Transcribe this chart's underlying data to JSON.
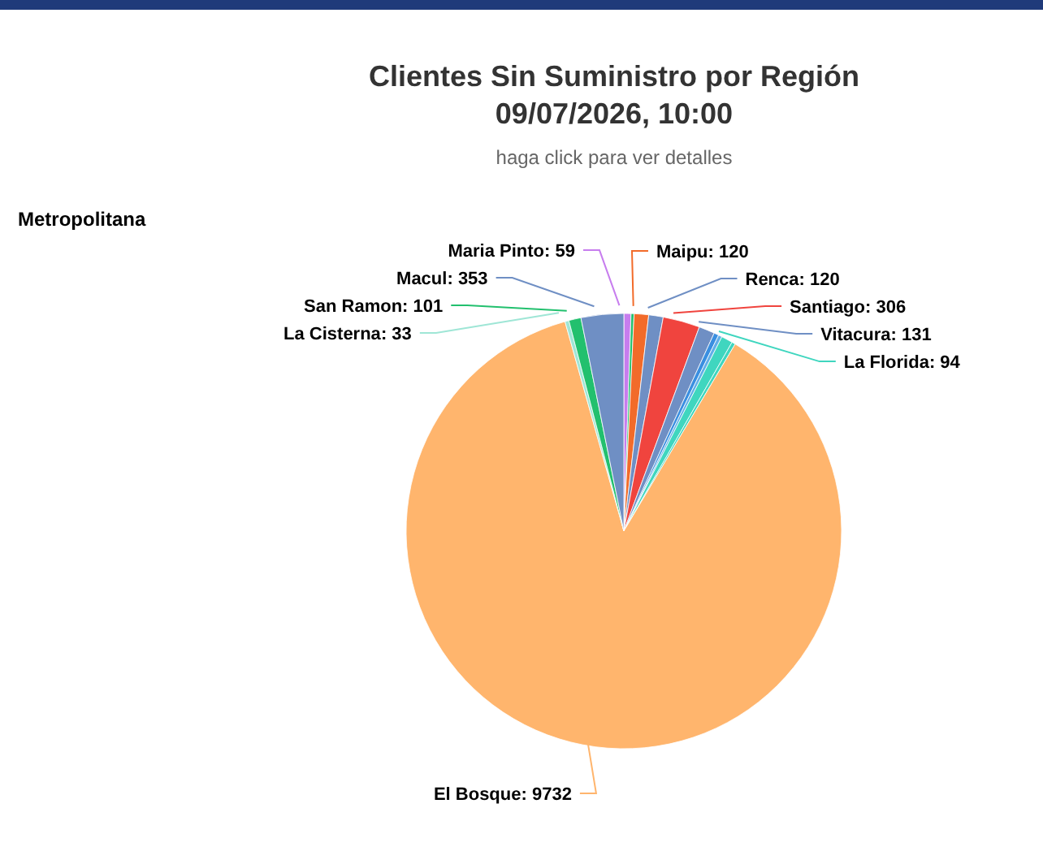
{
  "chart_data": {
    "type": "pie",
    "title": "Clientes Sin Suministro por Región\n09/07/2026, 10:00",
    "subtitle": "haga click para ver detalles",
    "annotations": [
      "Metropolitana"
    ],
    "categories": [
      "Maria Pinto",
      null,
      "Maipu",
      "Renca",
      "Santiago",
      "Vitacura",
      null,
      null,
      "La Florida",
      null,
      "El Bosque",
      "La Cisterna",
      "San Ramon",
      "Macul"
    ],
    "values": [
      59,
      25,
      120,
      120,
      306,
      131,
      40,
      30,
      94,
      30,
      9732,
      33,
      101,
      353
    ],
    "value_labels": [
      ": 59",
      null,
      ": 120",
      ": 120",
      ": 306",
      ": 131",
      null,
      null,
      ": 94",
      null,
      ": 9732",
      ": 33",
      ": 101",
      ": 353"
    ],
    "colors": [
      "#c77dee",
      "#22c06e",
      "#f26b2a",
      "#6f8fc4",
      "#f0443e",
      "#6f8fc4",
      "#3a8fe0",
      "#62aee8",
      "#3fd6bf",
      "#3fd6bf",
      "#ffb56d",
      "#9fe6d6",
      "#22c06e",
      "#6f8fc4"
    ]
  }
}
